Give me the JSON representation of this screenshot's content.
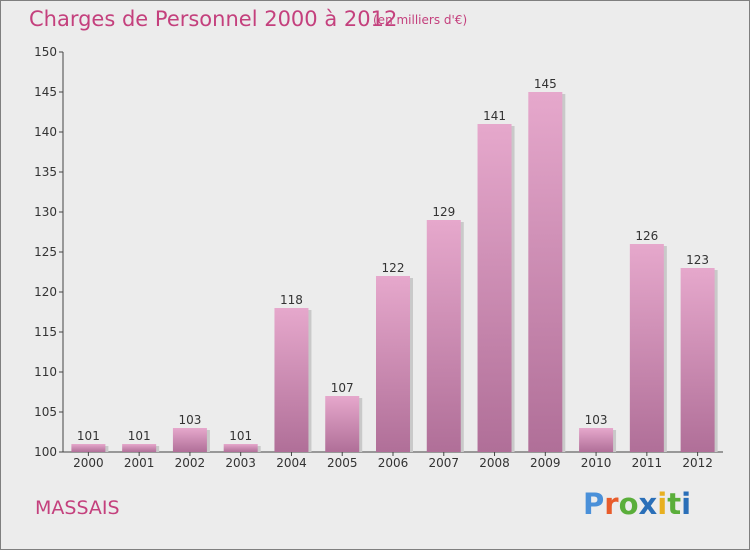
{
  "header": {
    "title": "Charges de Personnel 2000 à 2012",
    "subtitle": "(en milliers d'€)"
  },
  "footer": {
    "town": "MASSAIS",
    "logo": "Proxiti",
    "logo_colors": [
      "#4a90d9",
      "#e85c2b",
      "#5aae3a",
      "#2a6fb8",
      "#e8b020",
      "#5aae3a",
      "#2a6fb8"
    ]
  },
  "chart_data": {
    "type": "bar",
    "title": "Charges de Personnel 2000 à 2012",
    "subtitle": "(en milliers d'€)",
    "categories": [
      "2000",
      "2001",
      "2002",
      "2003",
      "2004",
      "2005",
      "2006",
      "2007",
      "2008",
      "2009",
      "2010",
      "2011",
      "2012"
    ],
    "values": [
      101,
      101,
      103,
      101,
      118,
      107,
      122,
      129,
      141,
      145,
      103,
      126,
      123
    ],
    "ylim": [
      100,
      150
    ],
    "yticks": [
      100,
      105,
      110,
      115,
      120,
      125,
      130,
      135,
      140,
      145,
      150
    ],
    "grid": false,
    "colors": {
      "bar_top": "#e6a8cc",
      "bar_bottom": "#b06f98",
      "text": "#c4407d"
    }
  }
}
